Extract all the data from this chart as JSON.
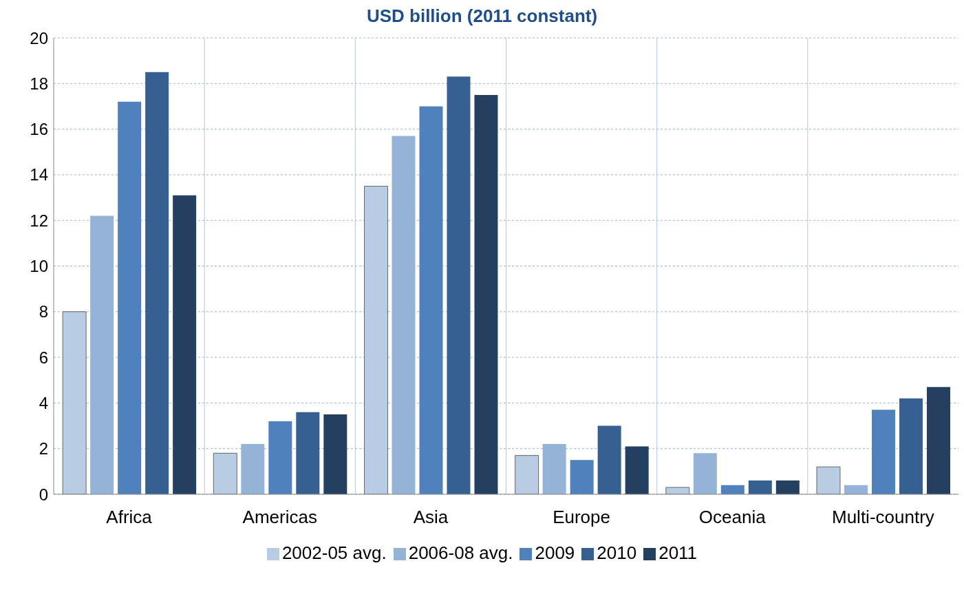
{
  "chart_data": {
    "type": "bar",
    "title": "USD billion (2011 constant)",
    "categories": [
      "Africa",
      "Americas",
      "Asia",
      "Europe",
      "Oceania",
      "Multi-country"
    ],
    "series": [
      {
        "name": "2002-05 avg.",
        "color": "#b8cce4",
        "values": [
          8.0,
          1.8,
          13.5,
          1.7,
          0.3,
          1.2
        ]
      },
      {
        "name": "2006-08 avg.",
        "color": "#95b3d7",
        "values": [
          12.2,
          2.2,
          15.7,
          2.2,
          1.8,
          0.4
        ]
      },
      {
        "name": "2009",
        "color": "#4f81bd",
        "values": [
          17.2,
          3.2,
          17.0,
          1.5,
          0.4,
          3.7
        ]
      },
      {
        "name": "2010",
        "color": "#366092",
        "values": [
          18.5,
          3.6,
          18.3,
          3.0,
          0.6,
          4.2
        ]
      },
      {
        "name": "2011",
        "color": "#243f60",
        "values": [
          13.1,
          3.5,
          17.5,
          2.1,
          0.6,
          4.7
        ]
      }
    ],
    "ylim": [
      0,
      20
    ],
    "yticks": [
      0,
      2,
      4,
      6,
      8,
      10,
      12,
      14,
      16,
      18,
      20
    ],
    "grid": true,
    "legend": "bottom"
  }
}
